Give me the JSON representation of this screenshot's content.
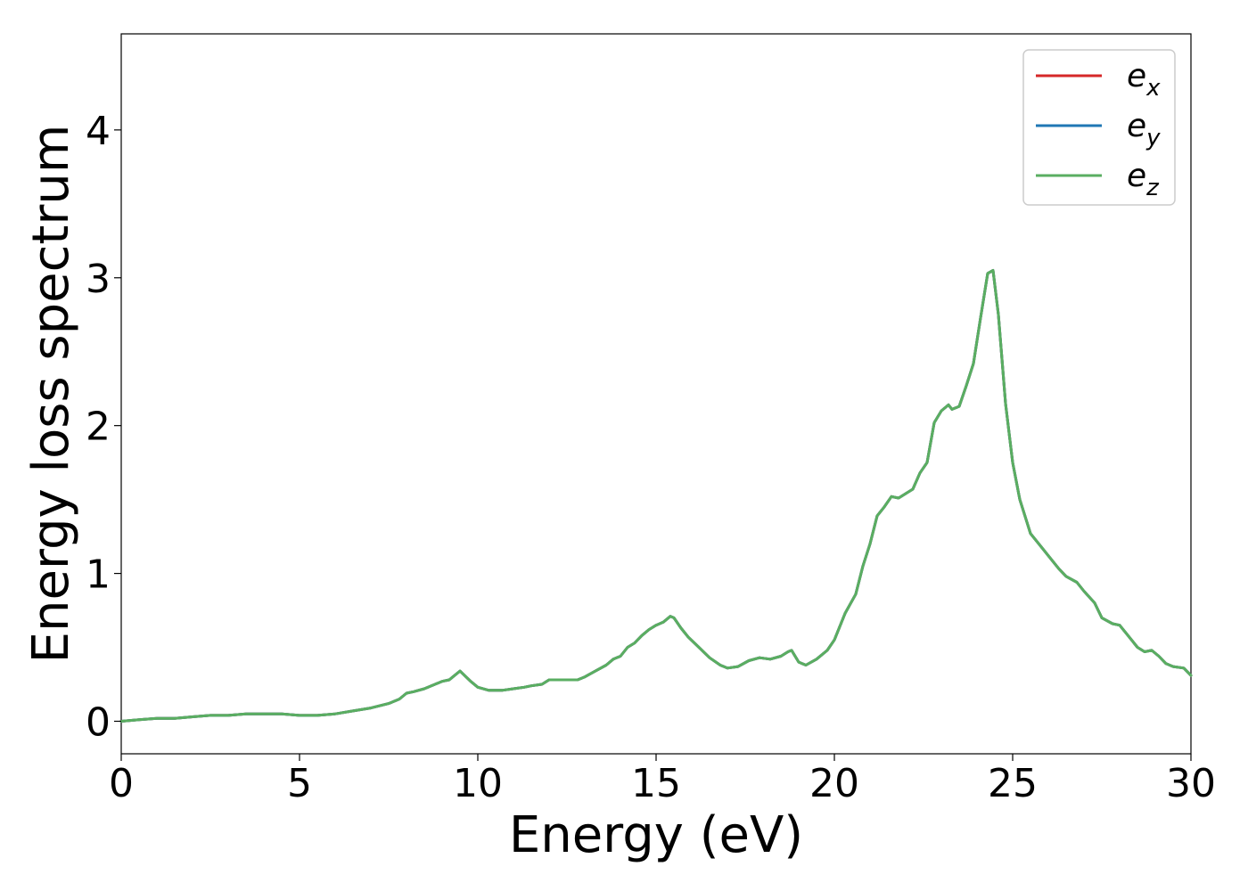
{
  "chart_data": {
    "type": "line",
    "xlabel": "Energy (eV)",
    "ylabel": "Energy loss spectrum",
    "xlim": [
      0,
      30
    ],
    "ylim": [
      -0.22,
      4.65
    ],
    "xticks": [
      0,
      5,
      10,
      15,
      20,
      25,
      30
    ],
    "yticks": [
      0,
      1,
      2,
      3,
      4
    ],
    "grid": false,
    "legend_position": "top-right",
    "x": [
      0,
      0.5,
      1,
      1.5,
      2,
      2.5,
      3,
      3.5,
      4,
      4.5,
      5,
      5.5,
      6,
      6.5,
      7,
      7.5,
      7.8,
      8.0,
      8.2,
      8.5,
      8.8,
      9.0,
      9.2,
      9.5,
      9.8,
      10.0,
      10.3,
      10.7,
      11.0,
      11.3,
      11.5,
      11.8,
      12.0,
      12.3,
      12.6,
      12.8,
      13.0,
      13.3,
      13.6,
      13.8,
      14.0,
      14.2,
      14.4,
      14.6,
      14.8,
      15.0,
      15.2,
      15.4,
      15.5,
      15.7,
      15.9,
      16.2,
      16.5,
      16.8,
      17.0,
      17.3,
      17.6,
      17.9,
      18.2,
      18.5,
      18.7,
      18.8,
      19.0,
      19.2,
      19.5,
      19.8,
      20.0,
      20.3,
      20.6,
      20.8,
      21.0,
      21.2,
      21.4,
      21.6,
      21.8,
      22.0,
      22.2,
      22.4,
      22.6,
      22.8,
      23.0,
      23.2,
      23.3,
      23.5,
      23.7,
      23.9,
      24.1,
      24.3,
      24.45,
      24.6,
      24.8,
      25.0,
      25.2,
      25.5,
      25.8,
      26.0,
      26.3,
      26.5,
      26.8,
      27.0,
      27.3,
      27.5,
      27.8,
      28.0,
      28.2,
      28.5,
      28.7,
      28.9,
      29.1,
      29.3,
      29.5,
      29.8,
      30.0
    ],
    "series": [
      {
        "name": "e_x",
        "color": "#d62728",
        "values": [
          0.0,
          0.01,
          0.02,
          0.02,
          0.03,
          0.04,
          0.04,
          0.05,
          0.05,
          0.05,
          0.04,
          0.04,
          0.05,
          0.07,
          0.09,
          0.12,
          0.15,
          0.19,
          0.2,
          0.22,
          0.25,
          0.27,
          0.28,
          0.34,
          0.27,
          0.23,
          0.21,
          0.21,
          0.22,
          0.23,
          0.24,
          0.25,
          0.28,
          0.28,
          0.28,
          0.28,
          0.3,
          0.34,
          0.38,
          0.42,
          0.44,
          0.5,
          0.53,
          0.58,
          0.62,
          0.65,
          0.67,
          0.71,
          0.7,
          0.63,
          0.57,
          0.5,
          0.43,
          0.38,
          0.36,
          0.37,
          0.41,
          0.43,
          0.42,
          0.44,
          0.47,
          0.48,
          0.4,
          0.38,
          0.42,
          0.48,
          0.55,
          0.73,
          0.86,
          1.05,
          1.2,
          1.39,
          1.45,
          1.52,
          1.51,
          1.54,
          1.57,
          1.68,
          1.75,
          2.02,
          2.1,
          2.14,
          2.11,
          2.13,
          2.27,
          2.42,
          2.73,
          3.03,
          3.05,
          2.75,
          2.15,
          1.75,
          1.5,
          1.27,
          1.18,
          1.12,
          1.03,
          0.98,
          0.94,
          0.88,
          0.8,
          0.7,
          0.66,
          0.65,
          0.59,
          0.5,
          0.47,
          0.48,
          0.44,
          0.39,
          0.37,
          0.36,
          0.31
        ]
      },
      {
        "name": "e_y",
        "color": "#1f77b4",
        "values": [
          0.0,
          0.01,
          0.02,
          0.02,
          0.03,
          0.04,
          0.04,
          0.05,
          0.05,
          0.05,
          0.04,
          0.04,
          0.05,
          0.07,
          0.09,
          0.12,
          0.15,
          0.19,
          0.2,
          0.22,
          0.25,
          0.27,
          0.28,
          0.34,
          0.27,
          0.23,
          0.21,
          0.21,
          0.22,
          0.23,
          0.24,
          0.25,
          0.28,
          0.28,
          0.28,
          0.28,
          0.3,
          0.34,
          0.38,
          0.42,
          0.44,
          0.5,
          0.53,
          0.58,
          0.62,
          0.65,
          0.67,
          0.71,
          0.7,
          0.63,
          0.57,
          0.5,
          0.43,
          0.38,
          0.36,
          0.37,
          0.41,
          0.43,
          0.42,
          0.44,
          0.47,
          0.48,
          0.4,
          0.38,
          0.42,
          0.48,
          0.55,
          0.73,
          0.86,
          1.05,
          1.2,
          1.39,
          1.45,
          1.52,
          1.51,
          1.54,
          1.57,
          1.68,
          1.75,
          2.02,
          2.1,
          2.14,
          2.11,
          2.13,
          2.27,
          2.42,
          2.73,
          3.03,
          3.05,
          2.75,
          2.15,
          1.75,
          1.5,
          1.27,
          1.18,
          1.12,
          1.03,
          0.98,
          0.94,
          0.88,
          0.8,
          0.7,
          0.66,
          0.65,
          0.59,
          0.5,
          0.47,
          0.48,
          0.44,
          0.39,
          0.37,
          0.36,
          0.31
        ]
      },
      {
        "name": "e_z",
        "color": "#5aae61",
        "values": [
          0.0,
          0.01,
          0.02,
          0.02,
          0.03,
          0.04,
          0.04,
          0.05,
          0.05,
          0.05,
          0.04,
          0.04,
          0.05,
          0.07,
          0.09,
          0.12,
          0.15,
          0.19,
          0.2,
          0.22,
          0.25,
          0.27,
          0.28,
          0.34,
          0.27,
          0.23,
          0.21,
          0.21,
          0.22,
          0.23,
          0.24,
          0.25,
          0.28,
          0.28,
          0.28,
          0.28,
          0.3,
          0.34,
          0.38,
          0.42,
          0.44,
          0.5,
          0.53,
          0.58,
          0.62,
          0.65,
          0.67,
          0.71,
          0.7,
          0.63,
          0.57,
          0.5,
          0.43,
          0.38,
          0.36,
          0.37,
          0.41,
          0.43,
          0.42,
          0.44,
          0.47,
          0.48,
          0.4,
          0.38,
          0.42,
          0.48,
          0.55,
          0.73,
          0.86,
          1.05,
          1.2,
          1.39,
          1.45,
          1.52,
          1.51,
          1.54,
          1.57,
          1.68,
          1.75,
          2.02,
          2.1,
          2.14,
          2.11,
          2.13,
          2.27,
          2.42,
          2.73,
          3.03,
          3.05,
          2.75,
          2.15,
          1.75,
          1.5,
          1.27,
          1.18,
          1.12,
          1.03,
          0.98,
          0.94,
          0.88,
          0.8,
          0.7,
          0.66,
          0.65,
          0.59,
          0.5,
          0.47,
          0.48,
          0.44,
          0.39,
          0.37,
          0.36,
          0.31
        ]
      }
    ],
    "legend": [
      {
        "base": "e",
        "sub": "x",
        "color": "#d62728"
      },
      {
        "base": "e",
        "sub": "y",
        "color": "#1f77b4"
      },
      {
        "base": "e",
        "sub": "z",
        "color": "#5aae61"
      }
    ]
  }
}
